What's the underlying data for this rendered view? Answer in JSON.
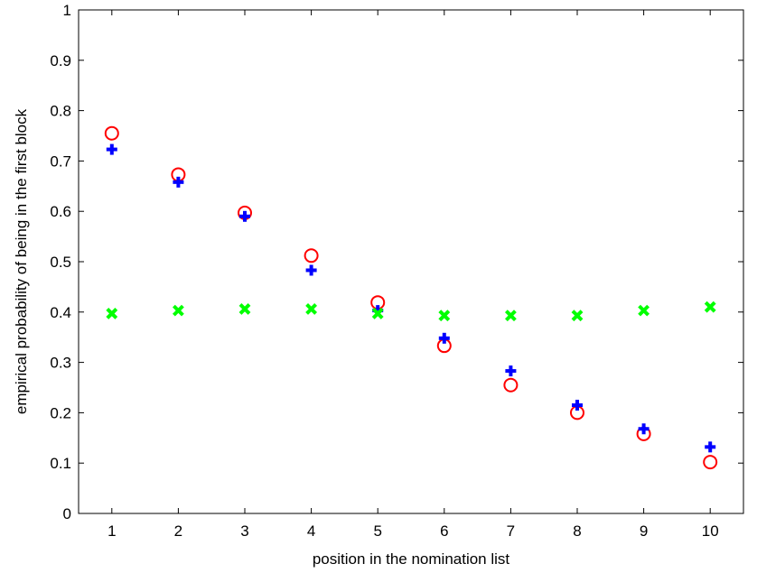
{
  "chart_data": {
    "type": "scatter",
    "title": "",
    "xlabel": "position in the nomination list",
    "ylabel": "empirical probability of being in the first block",
    "xlim": [
      0.5,
      10.5
    ],
    "ylim": [
      0,
      1
    ],
    "x_ticks": [
      "1",
      "2",
      "3",
      "4",
      "5",
      "6",
      "7",
      "8",
      "9",
      "10"
    ],
    "y_ticks": [
      "0",
      "0.1",
      "0.2",
      "0.3",
      "0.4",
      "0.5",
      "0.6",
      "0.7",
      "0.8",
      "0.9",
      "1"
    ],
    "grid": false,
    "legend": "none",
    "x": [
      1,
      2,
      3,
      4,
      5,
      6,
      7,
      8,
      9,
      10
    ],
    "series": [
      {
        "marker": "circle",
        "color": "#ff0000",
        "values": [
          0.755,
          0.673,
          0.597,
          0.512,
          0.419,
          0.333,
          0.255,
          0.2,
          0.158,
          0.102
        ]
      },
      {
        "marker": "plus",
        "color": "#0000ff",
        "values": [
          0.723,
          0.658,
          0.59,
          0.483,
          0.403,
          0.348,
          0.283,
          0.215,
          0.168,
          0.132
        ]
      },
      {
        "marker": "cross",
        "color": "#00ff00",
        "values": [
          0.397,
          0.403,
          0.406,
          0.406,
          0.397,
          0.393,
          0.393,
          0.393,
          0.403,
          0.41
        ]
      }
    ]
  }
}
